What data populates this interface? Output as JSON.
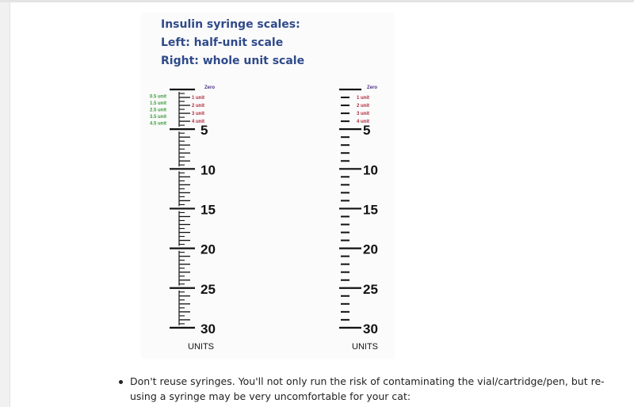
{
  "figure": {
    "caption": [
      "Insulin syringe scales:",
      "Left: half-unit scale",
      "Right: whole unit scale"
    ],
    "zero_label": "Zero",
    "unit_labels": [
      "1 unit",
      "2 unit",
      "3 unit",
      "4 unit"
    ],
    "half_unit_labels": [
      "0.5 unit",
      "1.5 unit",
      "2.5 unit",
      "3.5 unit",
      "4.5 unit"
    ],
    "major_labels": [
      "5",
      "10",
      "15",
      "20",
      "25",
      "30"
    ],
    "units_label": "UNITS",
    "colors": {
      "caption": "#2f4a8a",
      "zero": "#4a2f8a",
      "unit": "#b0283a",
      "half_unit": "#3a9a3a"
    }
  },
  "content": {
    "bullet": "Don't reuse syringes. You'll not only run the risk of contaminating the vial/cartridge/pen, but re-using a syringe may be very uncomfortable for your cat:"
  }
}
